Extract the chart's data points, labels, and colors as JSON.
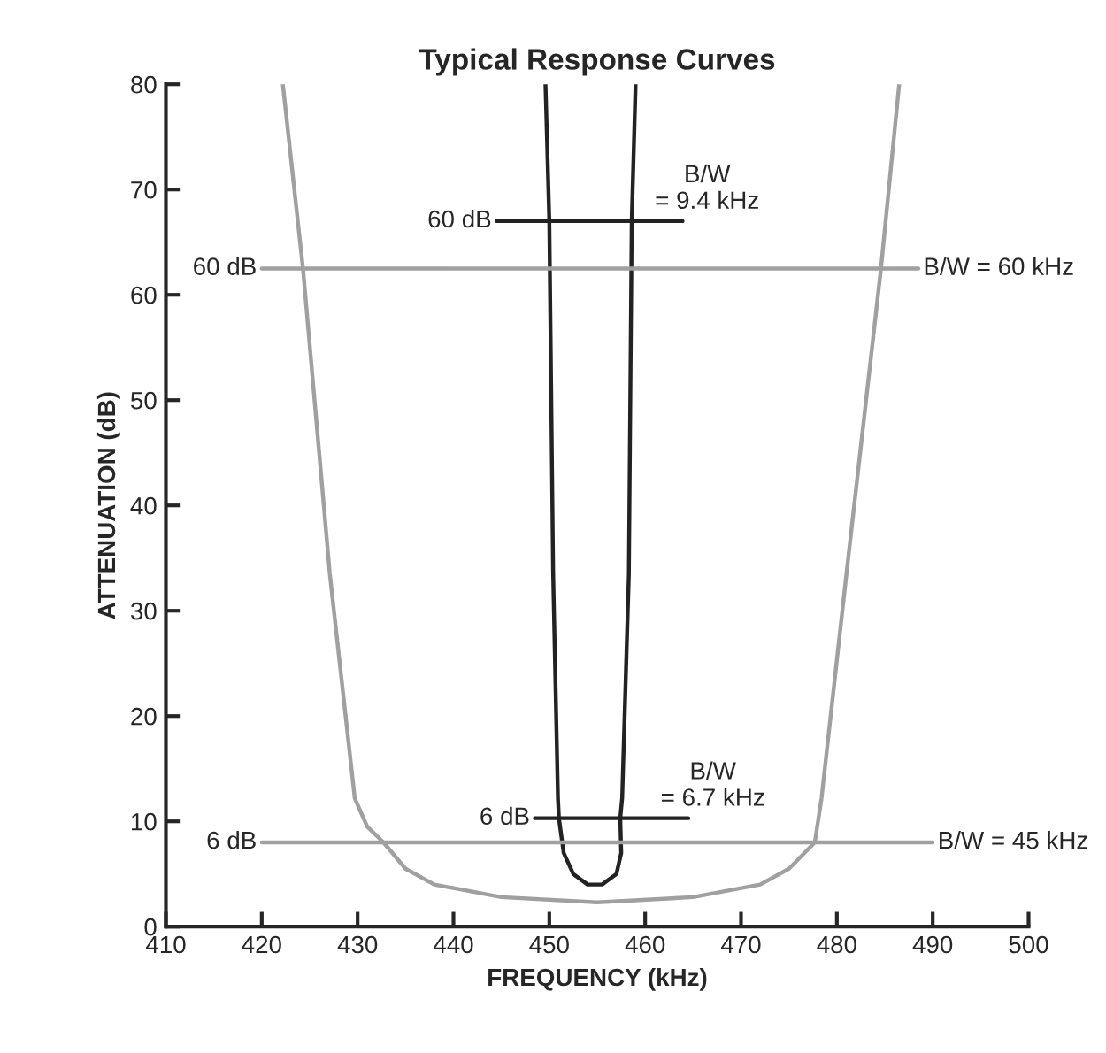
{
  "chart_data": {
    "type": "line",
    "title": "Typical Response Curves",
    "xlabel": "FREQUENCY (kHz)",
    "ylabel": "ATTENUATION (dB)",
    "xlim": [
      410,
      500
    ],
    "ylim": [
      0,
      80
    ],
    "xticks": [
      410,
      420,
      430,
      440,
      450,
      460,
      470,
      480,
      490,
      500
    ],
    "yticks": [
      0,
      10,
      20,
      30,
      40,
      50,
      60,
      70,
      80
    ],
    "grid": false,
    "legend": false,
    "marker": "none",
    "line_style": "solid",
    "series": [
      {
        "color": "#a0a0a0",
        "x": [
          422.2,
          424.3,
          427.1,
          429.7,
          431,
          432.7,
          435,
          438,
          445,
          455,
          465,
          472,
          475,
          477.7,
          478.4,
          481,
          484.6,
          486.5
        ],
        "values": [
          80,
          62.5,
          33.5,
          12.2,
          9.5,
          8,
          5.5,
          4,
          2.8,
          2.3,
          2.8,
          4,
          5.5,
          8,
          12.2,
          33.5,
          62.5,
          80
        ]
      },
      {
        "color": "#222222",
        "x": [
          449.6,
          450,
          450.4,
          450.9,
          451,
          451.5,
          452.5,
          454,
          455.5,
          457,
          457.5,
          457.4,
          457.6,
          458.3,
          458.6,
          459.0
        ],
        "values": [
          80,
          67,
          33.5,
          12.2,
          10.3,
          7,
          5,
          4,
          4,
          5,
          7,
          10.3,
          12.2,
          33.5,
          67,
          80
        ]
      },
      {
        "color": "#a0a0a0",
        "x": [
          420,
          488.5
        ],
        "values": [
          62.5,
          62.5
        ]
      },
      {
        "color": "#a0a0a0",
        "x": [
          420,
          490
        ],
        "values": [
          8,
          8
        ]
      },
      {
        "color": "#222222",
        "x": [
          444.5,
          463.9
        ],
        "values": [
          67,
          67
        ]
      },
      {
        "color": "#222222",
        "x": [
          448.5,
          464.5
        ],
        "values": [
          10.3,
          10.3
        ]
      }
    ],
    "annotations": [
      {
        "text": "60 dB",
        "x": 444.5,
        "y": 67
      },
      {
        "text": "B/W\n= 9.4 kHz",
        "x": 463.9,
        "y": 67
      },
      {
        "text": "60 dB",
        "x": 420,
        "y": 62.5
      },
      {
        "text": "B/W = 60 kHz",
        "x": 488.5,
        "y": 62.5
      },
      {
        "text": "6 dB",
        "x": 448.5,
        "y": 10.3
      },
      {
        "text": "B/W\n= 6.7 kHz",
        "x": 464.5,
        "y": 10.3
      },
      {
        "text": "6 dB",
        "x": 420,
        "y": 8
      },
      {
        "text": "B/W = 45 kHz",
        "x": 490,
        "y": 8
      }
    ]
  }
}
